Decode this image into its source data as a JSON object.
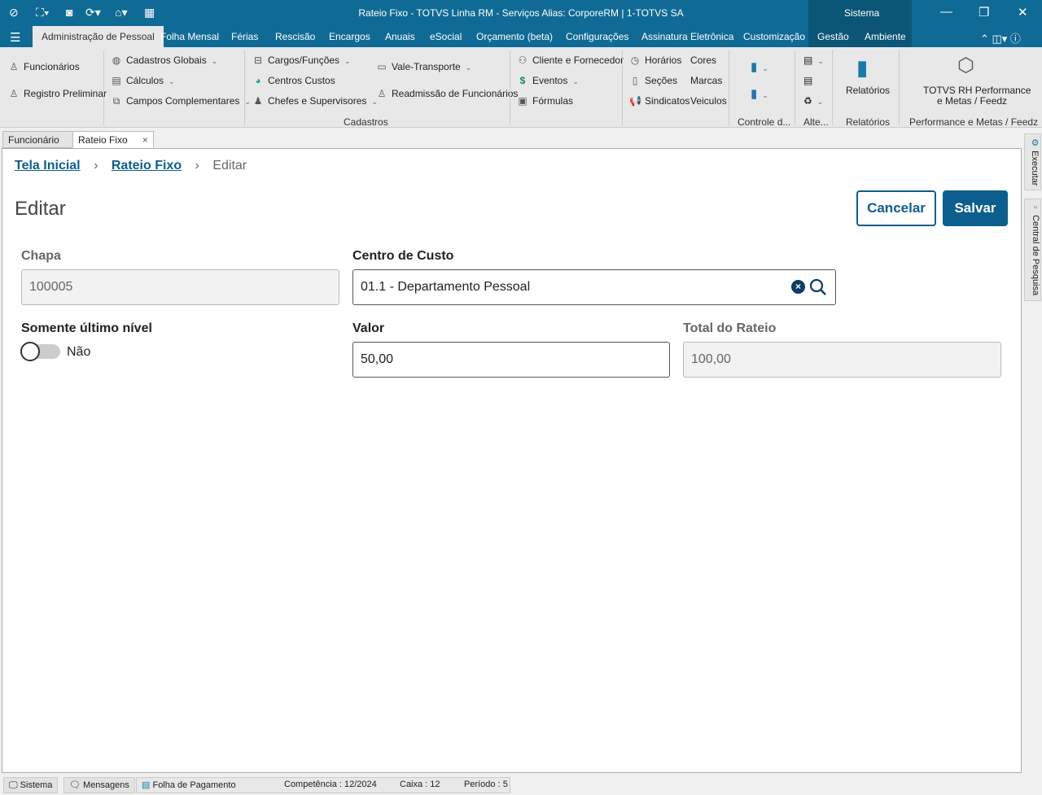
{
  "window": {
    "title": "Rateio Fixo - TOTVS Linha RM - Serviços  Alias: CorporeRM | 1-TOTVS SA",
    "sistema": "Sistema"
  },
  "menu": {
    "tabs": [
      "Administração de Pessoal",
      "Folha Mensal",
      "Férias",
      "Rescisão",
      "Encargos",
      "Anuais",
      "eSocial",
      "Orçamento (beta)",
      "Configurações",
      "Assinatura Eletrônica",
      "Customização",
      "Gestão",
      "Ambiente"
    ]
  },
  "ribbon": {
    "funcionarios": "Funcionários",
    "registro": "Registro Preliminar",
    "cadastros_globais": "Cadastros Globais",
    "calculos": "Cálculos",
    "campos": "Campos Complementares",
    "cargos": "Cargos/Funções",
    "centros": "Centros Custos",
    "chefes": "Chefes e Supervisores",
    "vale": "Vale-Transporte",
    "readmissao": "Readmissão de Funcionários",
    "cliente": "Cliente e Fornecedor",
    "eventos": "Eventos",
    "formulas": "Fórmulas",
    "horarios": "Horários",
    "secoes": "Seções",
    "sindicatos": "Sindicatos",
    "cores": "Cores",
    "marcas": "Marcas",
    "veiculos": "Veiculos",
    "relatorios": "Relatórios",
    "totvs_rh": "TOTVS RH Performance",
    "metas": "e Metas / Feedz",
    "groups": {
      "cadastros": "Cadastros",
      "controle": "Controle d...",
      "alte": "Alte...",
      "relatorios": "Relatórios",
      "performance": "Performance e Metas / Feedz"
    }
  },
  "doc_tabs": [
    "Funcionário",
    "Rateio Fixo"
  ],
  "breadcrumb": [
    "Tela Inicial",
    "Rateio Fixo",
    "Editar"
  ],
  "page": {
    "title": "Editar",
    "cancel": "Cancelar",
    "save": "Salvar"
  },
  "form": {
    "chapa": {
      "label": "Chapa",
      "value": "100005"
    },
    "centro": {
      "label": "Centro de Custo",
      "value": "01.1 - Departamento Pessoal"
    },
    "somente": {
      "label": "Somente último nível",
      "value": "Não",
      "on": false
    },
    "valor": {
      "label": "Valor",
      "value": "50,00"
    },
    "total": {
      "label": "Total do Rateio",
      "value": "100,00"
    }
  },
  "side": {
    "executar": "Executar",
    "central": "Central de Pesquisa"
  },
  "status": {
    "sistema": "Sistema",
    "mensagens": "Mensagens",
    "folha": "Folha de Pagamento",
    "competencia": "Competência : 12/2024",
    "caixa": "Caixa : 12",
    "periodo": "Período : 5"
  },
  "colors": {
    "brand": "#0f6b95",
    "primary": "#0c5e8f"
  }
}
